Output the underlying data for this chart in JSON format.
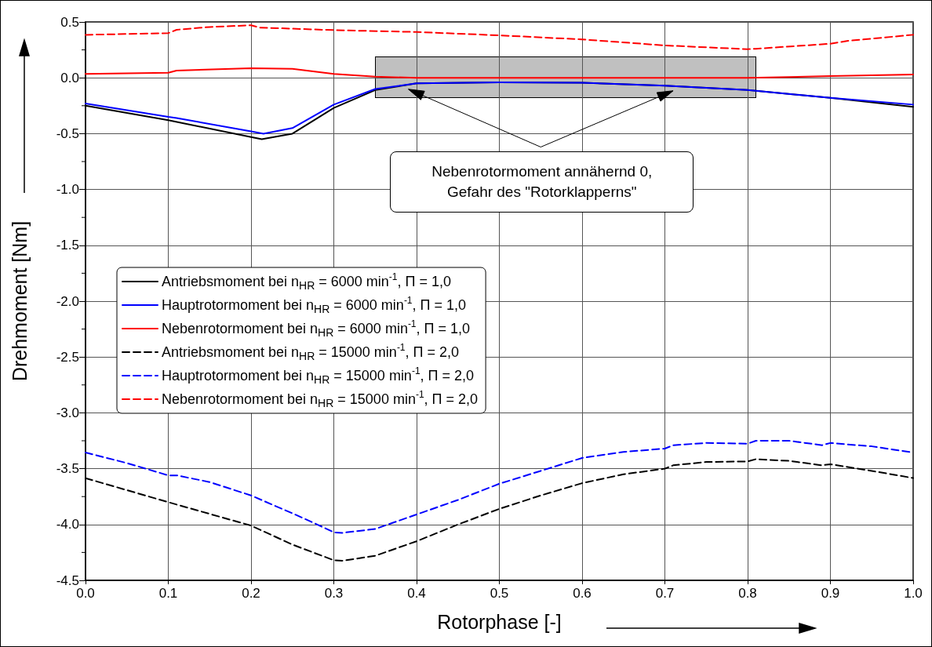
{
  "chart_data": {
    "type": "line",
    "xlabel": "Rotorphase [-]",
    "ylabel": "Drehmoment [Nm]",
    "xlim": [
      0,
      1
    ],
    "xticks": [
      {
        "value": 0,
        "label": "0.0"
      },
      0.1,
      0.2,
      0.3,
      0.4,
      0.5,
      0.6,
      0.7,
      0.8,
      0.9,
      {
        "value": 1,
        "label": "1.0"
      }
    ],
    "ylim": [
      -4.5,
      0.5
    ],
    "yticks": [
      {
        "value": -4.5,
        "label": "-4.5"
      },
      {
        "value": -4,
        "label": "-4.0"
      },
      {
        "value": -3.5,
        "label": "-3.5"
      },
      {
        "value": -3,
        "label": "-3.0"
      },
      {
        "value": -2.5,
        "label": "-2.5"
      },
      {
        "value": -2,
        "label": "-2.0"
      },
      {
        "value": -1.5,
        "label": "-1.5"
      },
      {
        "value": -1,
        "label": "-1.0"
      },
      {
        "value": -0.5,
        "label": "-0.5"
      },
      {
        "value": 0,
        "label": "0.0"
      },
      {
        "value": 0.5,
        "label": "0.5"
      }
    ],
    "grid": true,
    "legend": "left",
    "marker": "none",
    "annotations": [
      "Nebenrotormoment annähernd 0, Gefahr des \"Rotorklapperns\""
    ],
    "series": [
      {
        "name": "Antriebsmoment bei n$_{HR}$ = 6000 min$^{-1}$, Π = 1,0",
        "color": "#000000",
        "line_style": "solid",
        "x": [
          0,
          0.1,
          0.2,
          0.213,
          0.25,
          0.3,
          0.35,
          0.4,
          0.5,
          0.6,
          0.7,
          0.8,
          0.9,
          1.0
        ],
        "values": [
          -0.25,
          -0.38,
          -0.53,
          -0.55,
          -0.5,
          -0.27,
          -0.11,
          -0.05,
          -0.04,
          -0.045,
          -0.07,
          -0.11,
          -0.18,
          -0.26
        ]
      },
      {
        "name": "Hauptrotormoment bei n$_{HR}$ = 6000 min$^{-1}$, Π = 1,0",
        "color": "#0000ff",
        "line_style": "solid",
        "x": [
          0,
          0.1,
          0.11,
          0.2,
          0.215,
          0.25,
          0.3,
          0.35,
          0.4,
          0.5,
          0.6,
          0.7,
          0.8,
          0.9,
          1.0
        ],
        "values": [
          -0.23,
          -0.35,
          -0.36,
          -0.48,
          -0.5,
          -0.45,
          -0.24,
          -0.1,
          -0.05,
          -0.04,
          -0.045,
          -0.07,
          -0.11,
          -0.18,
          -0.24
        ]
      },
      {
        "name": "Nebenrotormoment bei n$_{HR}$ = 6000 min$^{-1}$, Π = 1,0",
        "color": "#ff0000",
        "line_style": "solid",
        "x": [
          0,
          0.1,
          0.11,
          0.2,
          0.25,
          0.3,
          0.35,
          0.4,
          0.5,
          0.6,
          0.7,
          0.8,
          0.9,
          1.0
        ],
        "values": [
          0.035,
          0.045,
          0.065,
          0.085,
          0.08,
          0.035,
          0.01,
          0.0,
          0.0,
          0.0,
          0.0,
          0.0,
          0.015,
          0.03
        ]
      },
      {
        "name": "Antriebsmoment bei n$_{HR}$ = 15000 min$^{-1}$, Π = 2,0",
        "color": "#000000",
        "line_style": "dashed",
        "x": [
          0,
          0.1,
          0.2,
          0.25,
          0.3,
          0.31,
          0.35,
          0.4,
          0.45,
          0.5,
          0.55,
          0.6,
          0.65,
          0.7,
          0.71,
          0.75,
          0.8,
          0.81,
          0.85,
          0.89,
          0.9,
          0.95,
          1.0
        ],
        "values": [
          -3.585,
          -3.8,
          -4.01,
          -4.18,
          -4.32,
          -4.325,
          -4.28,
          -4.15,
          -4.0,
          -3.86,
          -3.74,
          -3.63,
          -3.55,
          -3.5,
          -3.47,
          -3.44,
          -3.435,
          -3.415,
          -3.43,
          -3.47,
          -3.46,
          -3.52,
          -3.584
        ]
      },
      {
        "name": "Hauptrotormoment bei n$_{HR}$ = 15000 min$^{-1}$, Π = 2,0",
        "color": "#0000ff",
        "line_style": "dashed",
        "x": [
          0,
          0.05,
          0.1,
          0.11,
          0.15,
          0.2,
          0.25,
          0.28,
          0.3,
          0.31,
          0.35,
          0.4,
          0.45,
          0.5,
          0.55,
          0.6,
          0.65,
          0.7,
          0.71,
          0.75,
          0.8,
          0.81,
          0.85,
          0.89,
          0.9,
          0.95,
          1.0
        ],
        "values": [
          -3.355,
          -3.45,
          -3.56,
          -3.56,
          -3.62,
          -3.74,
          -3.9,
          -4.0,
          -4.07,
          -4.075,
          -4.04,
          -3.91,
          -3.78,
          -3.635,
          -3.52,
          -3.404,
          -3.35,
          -3.32,
          -3.29,
          -3.27,
          -3.276,
          -3.25,
          -3.25,
          -3.29,
          -3.27,
          -3.3,
          -3.356
        ]
      },
      {
        "name": "Nebenrotormoment bei n$_{HR}$ = 15000 min$^{-1}$, Π = 2,0",
        "color": "#ff0000",
        "line_style": "dashed",
        "x": [
          0,
          0.1,
          0.11,
          0.15,
          0.2,
          0.21,
          0.3,
          0.4,
          0.5,
          0.6,
          0.7,
          0.8,
          0.81,
          0.9,
          0.92,
          1.0
        ],
        "values": [
          0.385,
          0.4,
          0.43,
          0.455,
          0.47,
          0.45,
          0.427,
          0.41,
          0.38,
          0.344,
          0.29,
          0.256,
          0.26,
          0.305,
          0.33,
          0.385
        ]
      }
    ]
  }
}
